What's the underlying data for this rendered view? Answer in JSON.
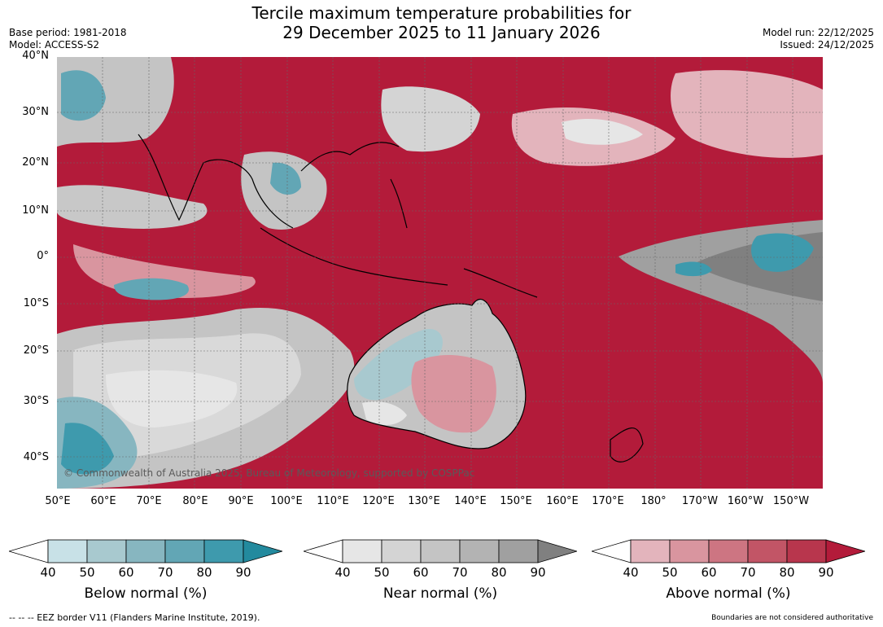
{
  "title_line1": "Tercile maximum temperature probabilities for",
  "title_line2": "29 December 2025 to 11 January 2026",
  "base_period": "Base period: 1981-2018",
  "model": "Model: ACCESS-S2",
  "model_run": "Model run: 22/12/2025",
  "issued": "Issued: 24/12/2025",
  "lat_labels": [
    "40°N",
    "30°N",
    "20°N",
    "10°N",
    "0°",
    "10°S",
    "20°S",
    "30°S",
    "40°S"
  ],
  "lon_labels": [
    "50°E",
    "60°E",
    "70°E",
    "80°E",
    "90°E",
    "100°E",
    "110°E",
    "120°E",
    "130°E",
    "140°E",
    "150°E",
    "160°E",
    "170°E",
    "180°",
    "170°W",
    "160°W",
    "150°W"
  ],
  "copyright": "© Commonwealth of Australia 2025, Bureau of Meteorology, supported by COSPPac",
  "colorbars": [
    {
      "label": "Below normal (%)",
      "ticks": [
        "40",
        "50",
        "60",
        "70",
        "80",
        "90"
      ],
      "colors": [
        "#ffffff",
        "#c8e1e7",
        "#a8c9cf",
        "#87b6c0",
        "#62a6b5",
        "#3e9aad",
        "#238a9e"
      ]
    },
    {
      "label": "Near normal (%)",
      "ticks": [
        "40",
        "50",
        "60",
        "70",
        "80",
        "90"
      ],
      "colors": [
        "#ffffff",
        "#e6e6e6",
        "#d4d4d4",
        "#c4c4c4",
        "#b3b3b3",
        "#a0a0a0",
        "#808080"
      ]
    },
    {
      "label": "Above normal (%)",
      "ticks": [
        "40",
        "50",
        "60",
        "70",
        "80",
        "90"
      ],
      "colors": [
        "#ffffff",
        "#e3b4bc",
        "#d9959f",
        "#cd7582",
        "#c25566",
        "#b8364d",
        "#b31b3a"
      ]
    }
  ],
  "eez_note": "--  --  -- EEZ border V11 (Flanders Marine Institute, 2019).",
  "boundaries_note": "Boundaries are not considered authoritative",
  "colors": {
    "above": "#b31b3a",
    "near": "#c4c4c4",
    "below": "#62a6b5"
  }
}
